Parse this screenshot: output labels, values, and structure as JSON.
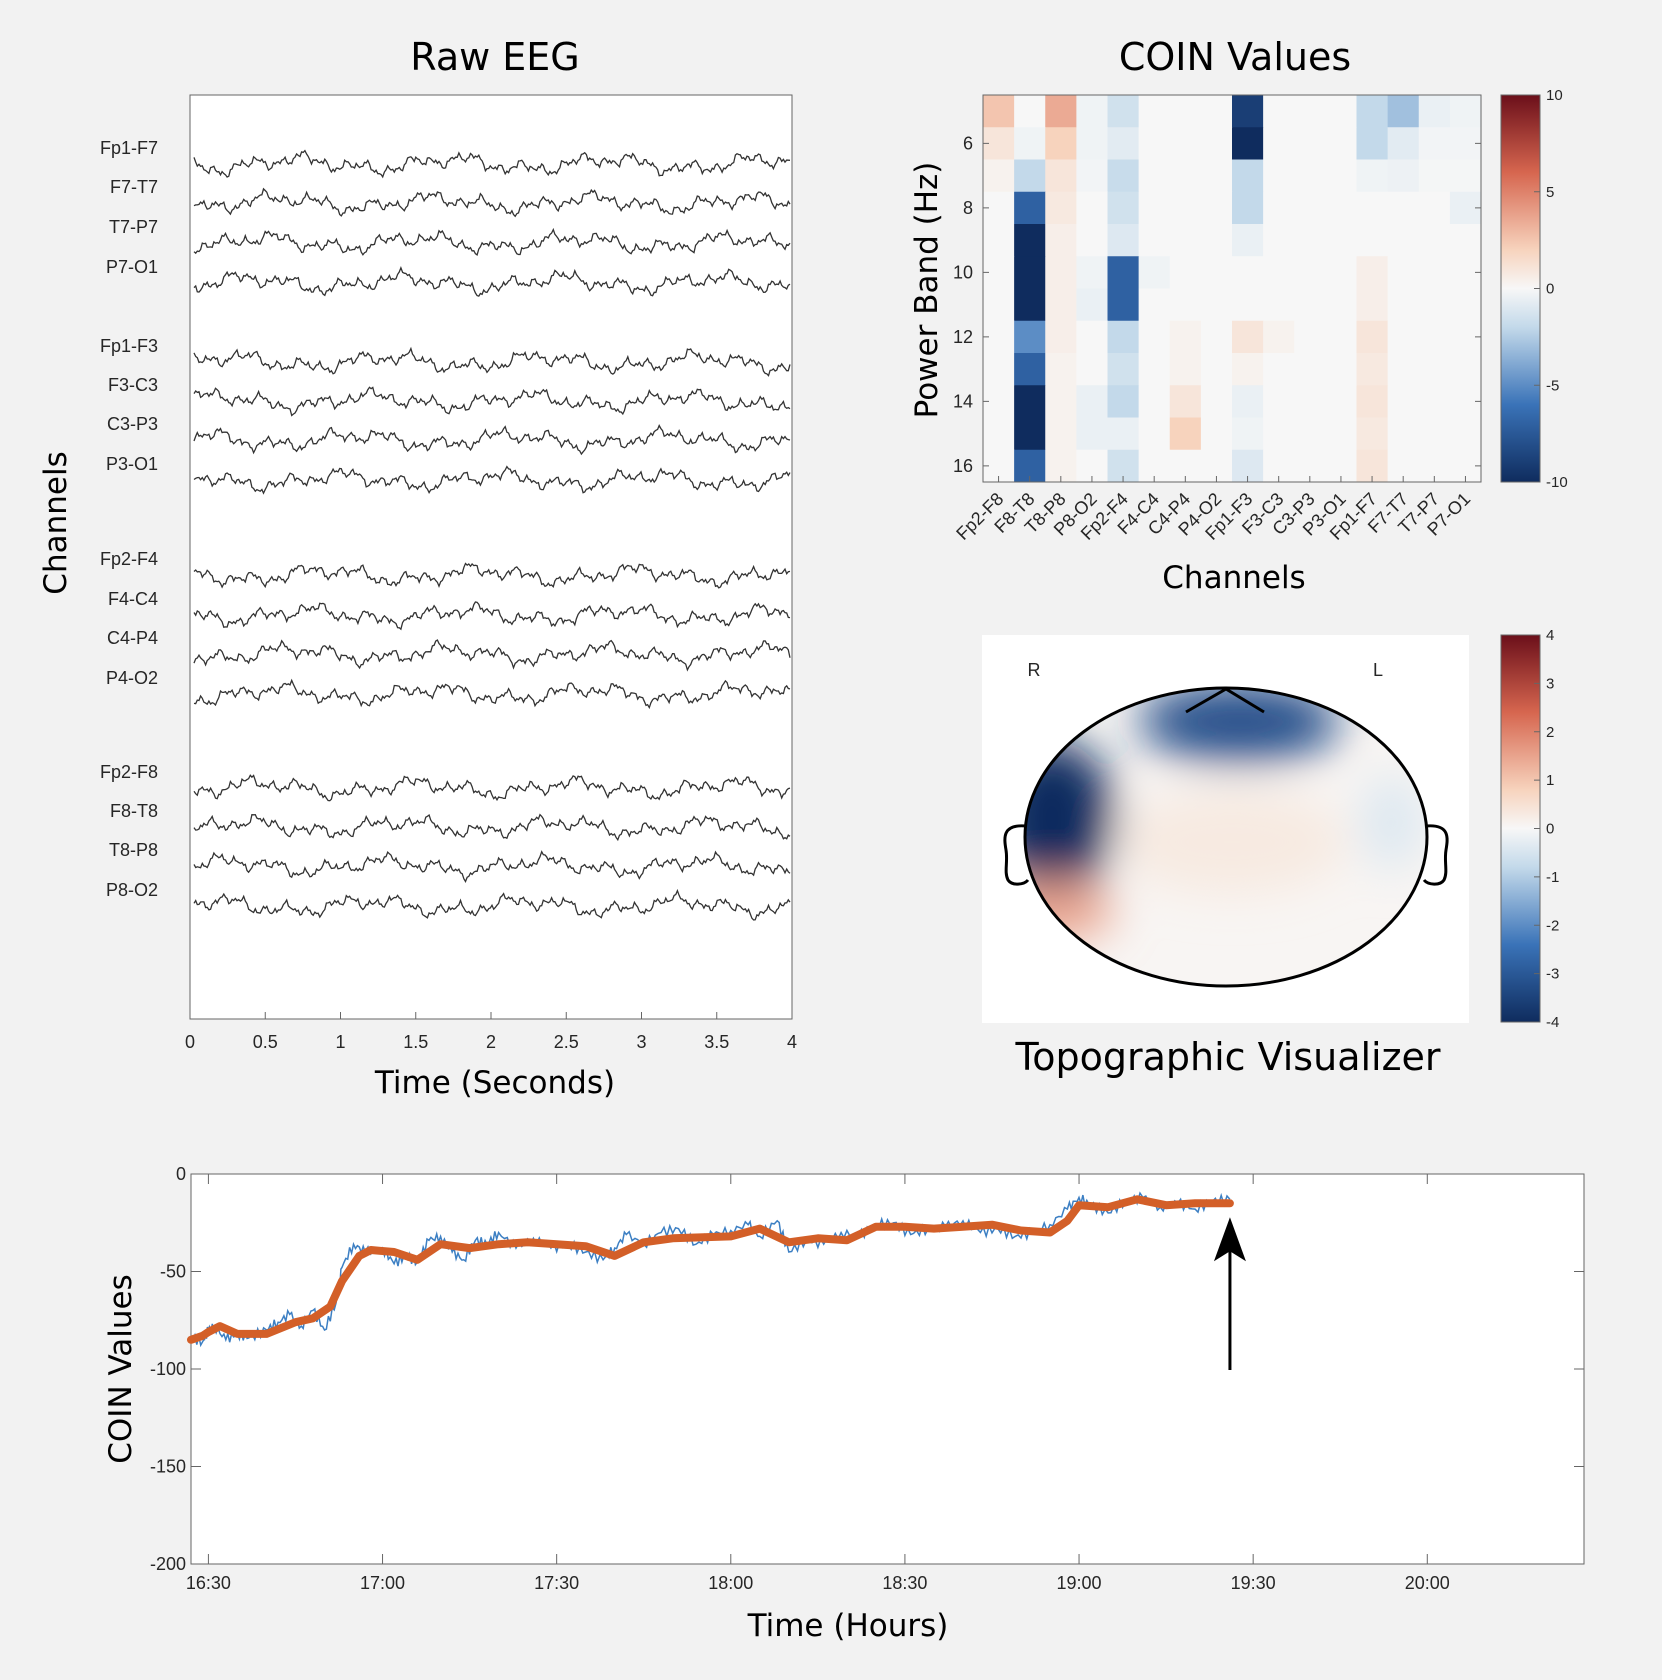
{
  "panels": {
    "eeg_title": "Raw EEG",
    "eeg_xlabel": "Time (Seconds)",
    "eeg_ylabel": "Channels",
    "heatmap_title": "COIN Values",
    "heatmap_xlabel": "Channels",
    "heatmap_ylabel": "Power Band (Hz)",
    "topo_title": "Topographic Visualizer",
    "topo_left_label": "R",
    "topo_right_label": "L",
    "trend_xlabel": "Time (Hours)",
    "trend_ylabel": "COIN Values"
  },
  "colors": {
    "page_bg": "#f2f2f2",
    "trace": "#333333",
    "raw_line": "#3c7fc3",
    "smooth_line": "#d35f28",
    "cmap_neg": "#0f2c5e",
    "cmap_mid": "#f7f7f7",
    "cmap_pos": "#6b0f1a"
  },
  "chart_data": [
    {
      "type": "line",
      "id": "raw-eeg",
      "title": "Raw EEG",
      "xlabel": "Time (Seconds)",
      "ylabel": "Channels",
      "xlim": [
        0,
        4
      ],
      "xticks": [
        "0",
        "0.5",
        "1",
        "1.5",
        "2",
        "2.5",
        "3",
        "3.5",
        "4"
      ],
      "channels": [
        "Fp1-F7",
        "F7-T7",
        "T7-P7",
        "P7-O1",
        "Fp1-F3",
        "F3-C3",
        "C3-P3",
        "P3-O1",
        "Fp2-F4",
        "F4-C4",
        "C4-P4",
        "P4-O2",
        "Fp2-F8",
        "F8-T8",
        "T8-P8",
        "P8-O2"
      ],
      "grid": false
    },
    {
      "type": "heatmap",
      "id": "coin-heatmap",
      "title": "COIN Values",
      "xlabel": "Channels",
      "ylabel": "Power Band (Hz)",
      "x_categories": [
        "Fp2-F8",
        "F8-T8",
        "T8-P8",
        "P8-O2",
        "Fp2-F4",
        "F4-C4",
        "C4-P4",
        "P4-O2",
        "Fp1-F3",
        "F3-C3",
        "C3-P3",
        "P3-O1",
        "Fp1-F7",
        "F7-T7",
        "T7-P7",
        "P7-O1"
      ],
      "y_values": [
        5,
        6,
        7,
        8,
        9,
        10,
        11,
        12,
        13,
        14,
        15,
        16
      ],
      "yticks": [
        "6",
        "8",
        "10",
        "12",
        "14",
        "16"
      ],
      "colorbar_ticks": [
        "10",
        "5",
        "0",
        "-5",
        "-10"
      ],
      "clim": [
        -10,
        10
      ],
      "values": [
        [
          2.5,
          0,
          3.5,
          -0.3,
          -1.5,
          0,
          0,
          0,
          -9,
          0,
          0,
          0,
          -2,
          -3,
          -0.5,
          -0.3
        ],
        [
          1,
          -0.3,
          2,
          -0.3,
          -0.8,
          0,
          0,
          0,
          -10,
          0,
          0,
          0,
          -2,
          -0.8,
          -0.2,
          -0.2
        ],
        [
          0.3,
          -2,
          1,
          -0.2,
          -1.8,
          0,
          0,
          0,
          -2,
          0,
          0,
          0,
          -0.3,
          -0.4,
          -0.1,
          -0.1
        ],
        [
          0,
          -7,
          0.8,
          0,
          -1.5,
          0,
          0,
          0,
          -2,
          0,
          0,
          0,
          0,
          0,
          0,
          -0.5
        ],
        [
          0,
          -10,
          0.5,
          0,
          -1,
          0,
          0,
          0,
          -0.5,
          0,
          0,
          0,
          0,
          0,
          0,
          0
        ],
        [
          0,
          -10,
          0.5,
          -0.3,
          -7,
          -0.3,
          0,
          0,
          0,
          0,
          0,
          0,
          0.5,
          0,
          0,
          0
        ],
        [
          0,
          -10,
          0.5,
          -0.5,
          -7,
          0,
          0,
          0,
          0,
          0,
          0,
          0,
          0.5,
          0,
          0,
          0
        ],
        [
          0,
          -5,
          0.5,
          0,
          -2,
          0,
          0.3,
          0,
          1,
          0.3,
          0,
          0,
          1,
          0,
          0,
          0
        ],
        [
          0,
          -7,
          0.3,
          0,
          -1.5,
          0,
          0.3,
          0,
          0.3,
          0,
          0,
          0,
          0.8,
          0,
          0,
          0
        ],
        [
          0,
          -10,
          0.3,
          -0.5,
          -2,
          0,
          1,
          0,
          -0.5,
          0,
          0,
          0,
          1,
          0,
          0,
          0
        ],
        [
          0,
          -10,
          0.3,
          -0.5,
          -0.5,
          0,
          2,
          0,
          -0.3,
          0,
          0,
          0,
          0.8,
          0,
          0,
          0
        ],
        [
          0,
          -7,
          0.3,
          0,
          -1.5,
          0,
          0,
          0,
          -1,
          0,
          0,
          0,
          1,
          0,
          0,
          0
        ]
      ]
    },
    {
      "type": "heatmap",
      "id": "topographic-map",
      "title": "Topographic Visualizer",
      "colorbar_ticks": [
        "4",
        "3",
        "2",
        "1",
        "0",
        "-1",
        "-2",
        "-3",
        "-4"
      ],
      "clim": [
        -4,
        4
      ],
      "regions": [
        {
          "name": "frontal",
          "value": -3.2
        },
        {
          "name": "right-temporal",
          "value": -4
        },
        {
          "name": "right-posterior",
          "value": 1.5
        },
        {
          "name": "central",
          "value": 0.3
        },
        {
          "name": "left-temporal",
          "value": -0.4
        }
      ]
    },
    {
      "type": "line",
      "id": "coin-trend",
      "xlabel": "Time (Hours)",
      "ylabel": "COIN Values",
      "xlim": [
        "16:27",
        "20:27"
      ],
      "ylim": [
        -200,
        0
      ],
      "xticks": [
        "16:30",
        "17:00",
        "17:30",
        "18:00",
        "18:30",
        "19:00",
        "19:30",
        "20:00"
      ],
      "yticks": [
        "0",
        "-50",
        "-100",
        "-150",
        "-200"
      ],
      "annotation": {
        "type": "arrow",
        "x": "19:26",
        "y": -15
      },
      "series": [
        {
          "role": "smoothed",
          "x": [
            "16:27",
            "16:29",
            "16:30",
            "16:32",
            "16:35",
            "16:40",
            "16:45",
            "16:48",
            "16:51",
            "16:53",
            "16:56",
            "16:58",
            "17:02",
            "17:06",
            "17:10",
            "17:15",
            "17:20",
            "17:25",
            "17:30",
            "17:35",
            "17:40",
            "17:45",
            "17:50",
            "18:00",
            "18:05",
            "18:10",
            "18:15",
            "18:20",
            "18:25",
            "18:30",
            "18:35",
            "18:40",
            "18:45",
            "18:50",
            "18:55",
            "18:58",
            "19:00",
            "19:05",
            "19:10",
            "19:15",
            "19:20",
            "19:26"
          ],
          "y": [
            -85,
            -83,
            -81,
            -78,
            -82,
            -82,
            -76,
            -74,
            -68,
            -55,
            -42,
            -39,
            -40,
            -44,
            -36,
            -38,
            -36,
            -35,
            -36,
            -37,
            -42,
            -35,
            -33,
            -32,
            -28,
            -35,
            -33,
            -34,
            -27,
            -27,
            -28,
            -27,
            -26,
            -29,
            -30,
            -24,
            -16,
            -17,
            -13,
            -16,
            -15,
            -15
          ]
        },
        {
          "role": "raw",
          "x": [
            "16:27",
            "16:29",
            "16:30",
            "16:31",
            "16:33",
            "16:35",
            "16:37",
            "16:40",
            "16:42",
            "16:44",
            "16:46",
            "16:48",
            "16:50",
            "16:52",
            "16:53",
            "16:55",
            "16:57",
            "17:00",
            "17:02",
            "17:04",
            "17:06",
            "17:08",
            "17:10",
            "17:12",
            "17:14",
            "17:16",
            "17:18",
            "17:20",
            "17:23",
            "17:26",
            "17:29",
            "17:32",
            "17:35",
            "17:38",
            "17:40",
            "17:42",
            "17:45",
            "17:48",
            "17:51",
            "17:54",
            "17:57",
            "18:00",
            "18:03",
            "18:05",
            "18:08",
            "18:10",
            "18:13",
            "18:16",
            "18:19",
            "18:22",
            "18:25",
            "18:28",
            "18:31",
            "18:34",
            "18:37",
            "18:40",
            "18:43",
            "18:46",
            "18:49",
            "18:52",
            "18:55",
            "18:58",
            "19:00",
            "19:02",
            "19:05",
            "19:08",
            "19:11",
            "19:14",
            "19:17",
            "19:20",
            "19:23",
            "19:26"
          ],
          "y": [
            -84,
            -86,
            -80,
            -78,
            -85,
            -82,
            -84,
            -80,
            -76,
            -72,
            -78,
            -70,
            -80,
            -66,
            -48,
            -36,
            -40,
            -38,
            -46,
            -42,
            -45,
            -34,
            -32,
            -40,
            -44,
            -34,
            -36,
            -30,
            -38,
            -33,
            -38,
            -36,
            -40,
            -44,
            -38,
            -31,
            -36,
            -30,
            -28,
            -36,
            -31,
            -29,
            -26,
            -32,
            -24,
            -40,
            -34,
            -36,
            -30,
            -32,
            -26,
            -25,
            -31,
            -28,
            -27,
            -24,
            -30,
            -28,
            -32,
            -30,
            -26,
            -18,
            -12,
            -16,
            -20,
            -14,
            -12,
            -17,
            -15,
            -18,
            -14,
            -13
          ]
        }
      ]
    }
  ]
}
